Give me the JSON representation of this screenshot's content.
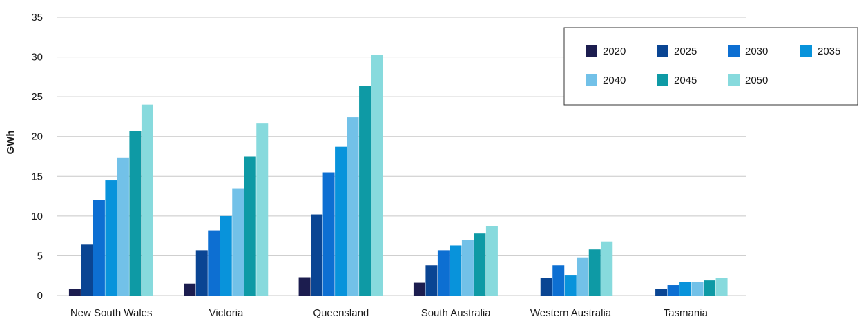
{
  "chart_data": {
    "type": "bar",
    "ylabel": "GWh",
    "xlabel": "",
    "ylim": [
      0,
      35
    ],
    "yticks": [
      0,
      5,
      10,
      15,
      20,
      25,
      30,
      35
    ],
    "grid": true,
    "legend_position": "top-right",
    "categories": [
      "New South Wales",
      "Victoria",
      "Queensland",
      "South Australia",
      "Western Australia",
      "Tasmania"
    ],
    "series": [
      {
        "name": "2020",
        "color": "#1c1d4f",
        "values": [
          0.8,
          1.5,
          2.3,
          1.6,
          0,
          0
        ]
      },
      {
        "name": "2025",
        "color": "#0a4593",
        "values": [
          6.4,
          5.7,
          10.2,
          3.8,
          2.2,
          0.8
        ]
      },
      {
        "name": "2030",
        "color": "#0d6fd2",
        "values": [
          12.0,
          8.2,
          15.5,
          5.7,
          3.8,
          1.3
        ]
      },
      {
        "name": "2035",
        "color": "#0893db",
        "values": [
          14.5,
          10.0,
          18.7,
          6.3,
          2.6,
          1.7
        ]
      },
      {
        "name": "2040",
        "color": "#72c1e8",
        "values": [
          17.3,
          13.5,
          22.4,
          7.0,
          4.8,
          1.7
        ]
      },
      {
        "name": "2045",
        "color": "#0e9aa5",
        "values": [
          20.7,
          17.5,
          26.4,
          7.8,
          5.8,
          1.9
        ]
      },
      {
        "name": "2050",
        "color": "#87dadd",
        "values": [
          24.0,
          21.7,
          30.3,
          8.7,
          6.8,
          2.2
        ]
      }
    ]
  }
}
